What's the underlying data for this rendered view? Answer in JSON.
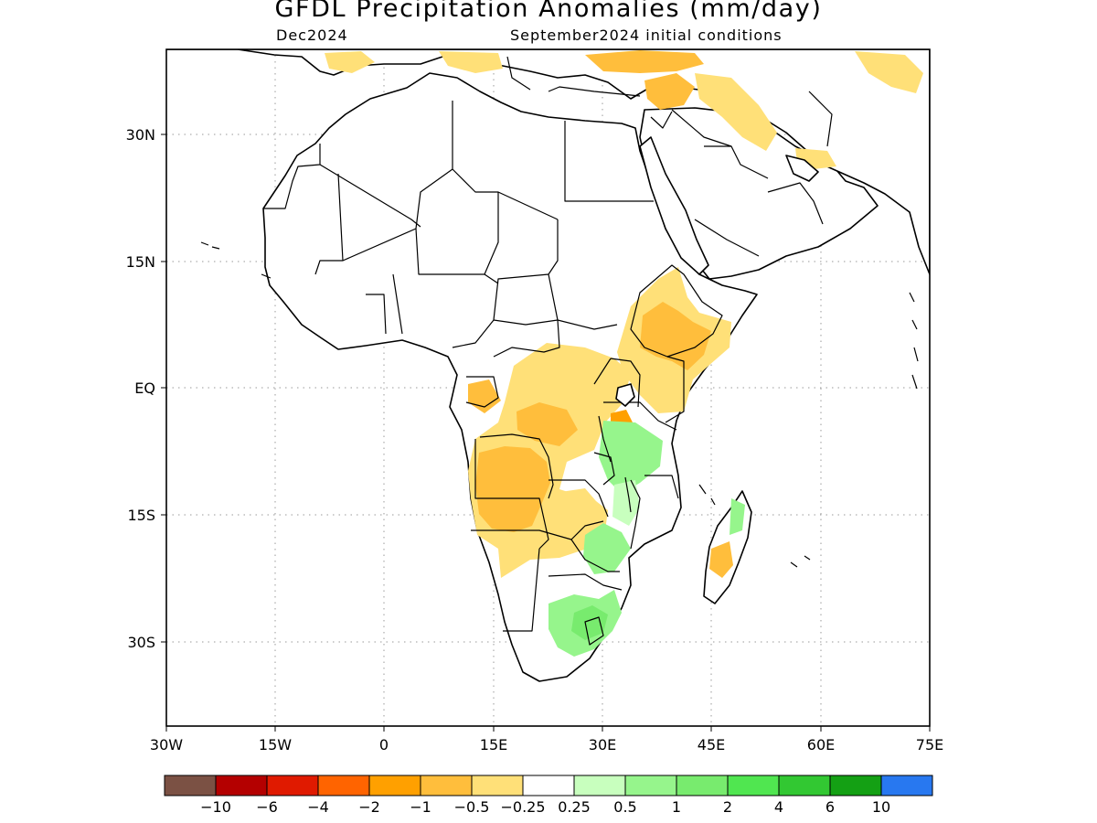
{
  "title": "GFDL Precipitation Anomalies (mm/day)",
  "valid_month": "Dec2024",
  "initial_conditions": "September2024 initial conditions",
  "x_ticks": [
    "30W",
    "15W",
    "0",
    "15E",
    "30E",
    "45E",
    "60E",
    "75E"
  ],
  "y_ticks": [
    "30N",
    "15N",
    "EQ",
    "15S",
    "30S"
  ],
  "legend": {
    "colors": [
      "#7b5144",
      "#b40000",
      "#e01a00",
      "#ff6400",
      "#ffa000",
      "#ffbe3c",
      "#ffe078",
      "#ffffff",
      "#c8ffbe",
      "#96f58c",
      "#78eb6e",
      "#50e650",
      "#32c832",
      "#14a014",
      "#2878f0"
    ],
    "labels": [
      "−10",
      "−6",
      "−4",
      "−2",
      "−1",
      "−0.5",
      "−0.25",
      "0.25",
      "0.5",
      "1",
      "2",
      "4",
      "6",
      "10"
    ]
  }
}
